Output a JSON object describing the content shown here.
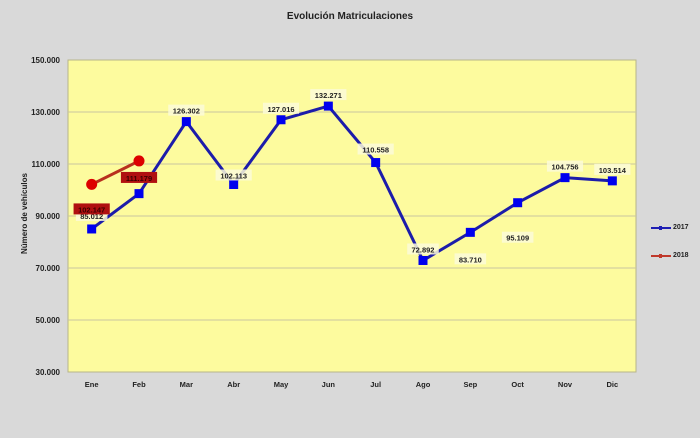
{
  "chart_data": {
    "type": "line",
    "title": "Evolución Matriculaciones",
    "xlabel": "",
    "ylabel": "Número de vehículos",
    "ylim": [
      30000,
      150000
    ],
    "yticks": [
      30000,
      50000,
      70000,
      90000,
      110000,
      130000,
      150000
    ],
    "ytick_labels": [
      "30.000",
      "50.000",
      "70.000",
      "90.000",
      "110.000",
      "130.000",
      "150.000"
    ],
    "grid": true,
    "legend_position": "right",
    "categories": [
      "Ene",
      "Feb",
      "Mar",
      "Abr",
      "May",
      "Jun",
      "Jul",
      "Ago",
      "Sep",
      "Oct",
      "Nov",
      "Dic"
    ],
    "series": [
      {
        "name": "2017",
        "color": "#0000cc",
        "marker": "square",
        "values": [
          85012,
          98600,
          126302,
          102113,
          127016,
          132271,
          110558,
          72892,
          83710,
          95109,
          104756,
          103514
        ],
        "labels": [
          "85.012",
          "",
          "126.302",
          "102.113",
          "127.016",
          "132.271",
          "110.558",
          "72.892",
          "83.710",
          "95.109",
          "104.756",
          "103.514"
        ]
      },
      {
        "name": "2018",
        "color": "#c00000",
        "marker": "circle",
        "values": [
          102147,
          111179,
          null,
          null,
          null,
          null,
          null,
          null,
          null,
          null,
          null,
          null
        ],
        "labels": [
          "102.147",
          "111.179",
          "",
          "",
          "",
          "",
          "",
          "",
          "",
          "",
          "",
          ""
        ]
      }
    ]
  },
  "legend": {
    "items": [
      {
        "label": "2017",
        "color": "#1f1fb4"
      },
      {
        "label": "2018",
        "color": "#c0392b"
      }
    ]
  }
}
